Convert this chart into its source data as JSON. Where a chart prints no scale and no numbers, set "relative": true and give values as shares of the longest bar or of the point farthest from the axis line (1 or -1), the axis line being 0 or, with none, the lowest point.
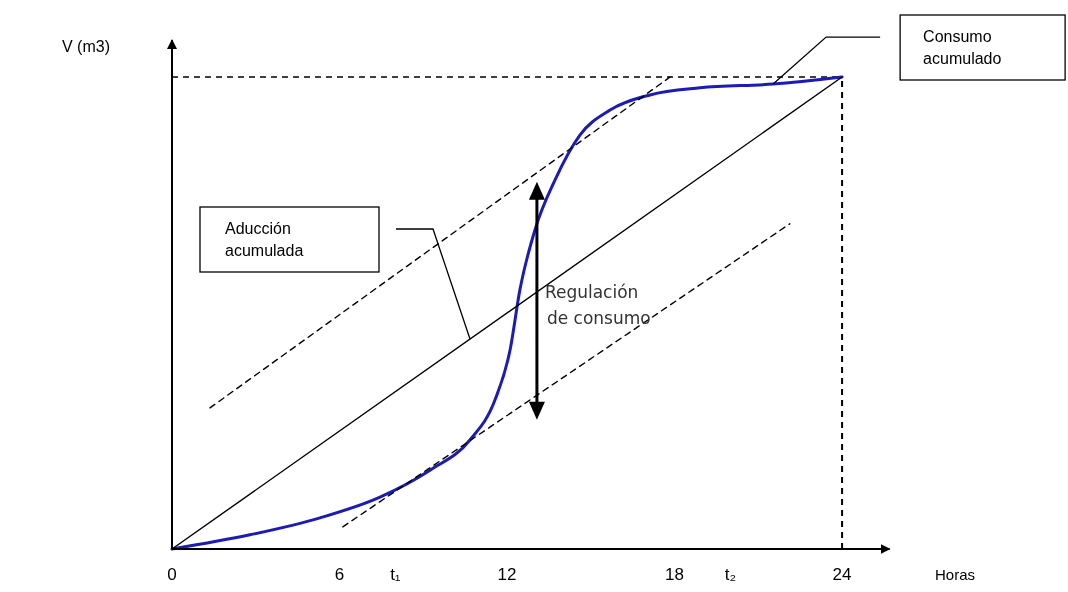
{
  "chart_data": {
    "type": "line",
    "relative": true,
    "xlabel": "Horas",
    "ylabel": "V (m3)",
    "xlim": [
      0,
      25.7
    ],
    "xticks": [
      0,
      6,
      {
        "value": 8,
        "label": "t₁"
      },
      12,
      18,
      {
        "value": 20,
        "label": "t₂"
      },
      24
    ],
    "series": [
      {
        "color": "#1c1cb4",
        "x": [
          0,
          2.79,
          5.3,
          7.45,
          9.24,
          10.67,
          11.57,
          12.11,
          12.46,
          13.0,
          13.72,
          14.61,
          15.69,
          17.12,
          18.91,
          21.53,
          24
        ],
        "values": [
          0,
          0.03,
          0.066,
          0.11,
          0.167,
          0.231,
          0.316,
          0.422,
          0.549,
          0.676,
          0.782,
          0.877,
          0.93,
          0.962,
          0.977,
          0.985,
          1
        ]
      },
      {
        "color": "#000000",
        "x": [
          0,
          24
        ],
        "values": [
          0,
          1
        ]
      },
      {
        "color": "#000000",
        "line_style": "dashed",
        "x": [
          1.36,
          17.84
        ],
        "values": [
          0.299,
          1
        ]
      },
      {
        "color": "#000000",
        "line_style": "dashed",
        "x": [
          6.12,
          22.13
        ],
        "values": [
          0.047,
          0.689
        ]
      }
    ],
    "ref_lines": [
      {
        "axis": "y",
        "value": 1,
        "line_style": "dashed"
      },
      {
        "axis": "x",
        "value": 24,
        "line_style": "dashed"
      }
    ],
    "annotations": [
      "Consumo acumulado",
      "Aducción acumulada",
      {
        "text": "Regulación de consumo",
        "x": 13.07,
        "y": 0.545
      }
    ]
  }
}
